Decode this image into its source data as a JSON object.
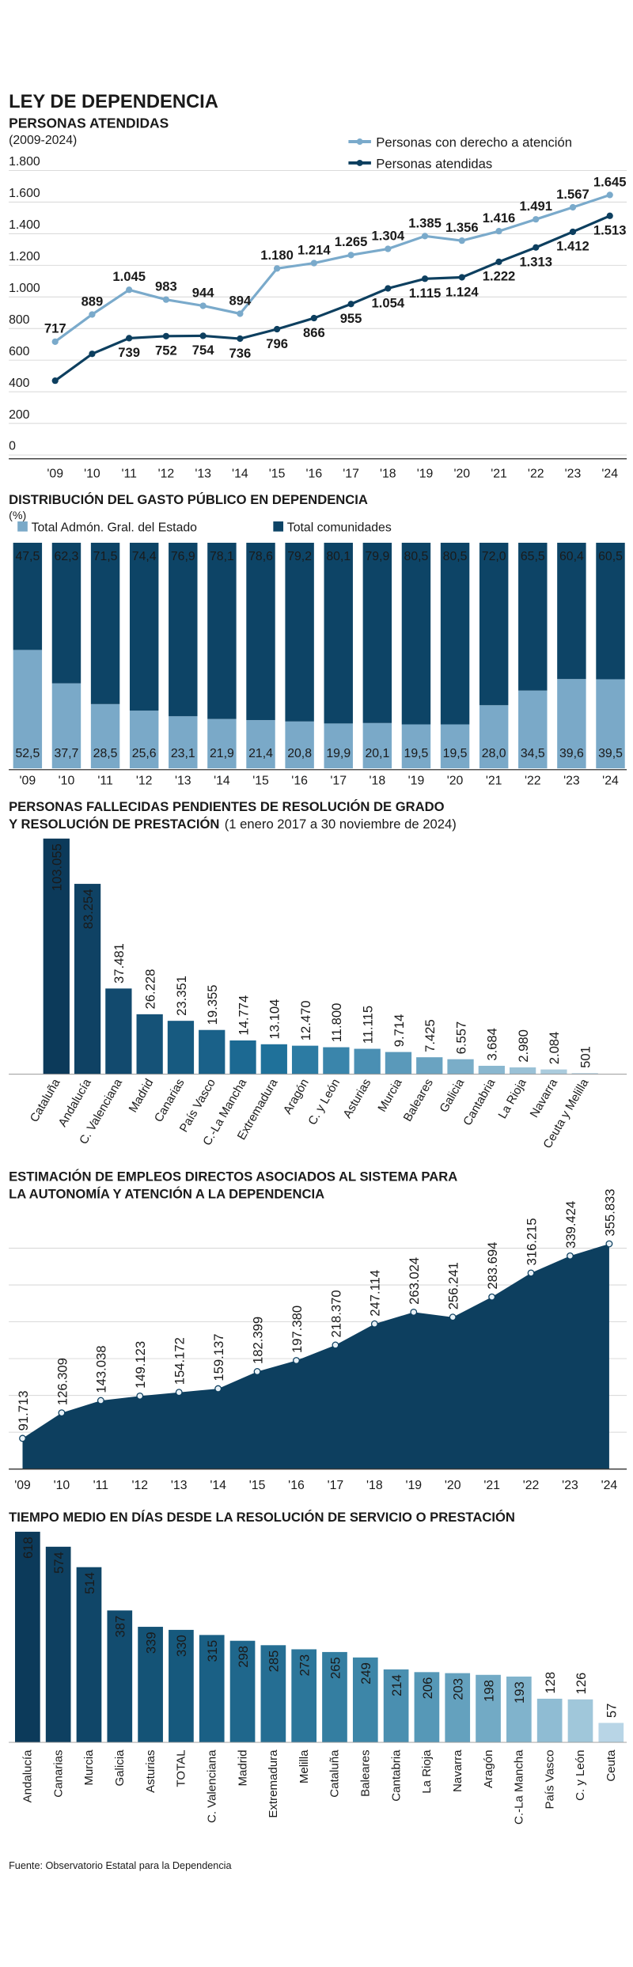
{
  "header": {
    "title": "LEY DE DEPENDENCIA"
  },
  "chart_data": [
    {
      "type": "line",
      "title": "PERSONAS ATENDIDAS",
      "subtitle": "(2009-2024)",
      "categories": [
        "'09",
        "'10",
        "'11",
        "'12",
        "'13",
        "'14",
        "'15",
        "'16",
        "'17",
        "'18",
        "'19",
        "'20",
        "'21",
        "'22",
        "'23",
        "'24"
      ],
      "series": [
        {
          "name": "Personas con derecho a atención",
          "color": "#7aaacb",
          "values": [
            717,
            889,
            1045,
            983,
            944,
            894,
            1180,
            1214,
            1265,
            1304,
            1385,
            1356,
            1416,
            1491,
            1567,
            1645
          ],
          "value_labels": [
            "717",
            "889",
            "1.045",
            "983",
            "944",
            "894",
            "1.180",
            "1.214",
            "1.265",
            "1.304",
            "1.385",
            "1.356",
            "1.416",
            "1.491",
            "1.567",
            "1.645"
          ]
        },
        {
          "name": "Personas atendidas",
          "color": "#0d3f5f",
          "values": [
            470,
            640,
            739,
            752,
            754,
            736,
            796,
            866,
            955,
            1054,
            1115,
            1124,
            1222,
            1313,
            1412,
            1513
          ],
          "value_labels": [
            null,
            null,
            "739",
            "752",
            "754",
            "736",
            "796",
            "866",
            "955",
            "1.054",
            "1.115",
            "1.124",
            "1.222",
            "1.313",
            "1.412",
            "1.513"
          ]
        }
      ],
      "ylim": [
        0,
        1800
      ],
      "yticks": [
        0,
        200,
        400,
        600,
        800,
        {
          "value": 1000,
          "label": "1.000"
        },
        {
          "value": 1200,
          "label": "1.200"
        },
        {
          "value": 1400,
          "label": "1.400"
        },
        {
          "value": 1600,
          "label": "1.600"
        },
        {
          "value": 1800,
          "label": "1.800"
        }
      ],
      "grid": true
    },
    {
      "type": "stacked_bar",
      "title": "DISTRIBUCIÓN DEL GASTO PÚBLICO EN DEPENDENCIA",
      "subtitle": "(%)",
      "categories": [
        "'09",
        "'10",
        "'11",
        "'12",
        "'13",
        "'14",
        "'15",
        "'16",
        "'17",
        "'18",
        "'19",
        "'20",
        "'21",
        "'22",
        "'23",
        "'24"
      ],
      "series": [
        {
          "name": "Total Admón. Gral. del Estado",
          "color": "#7aa9c8",
          "values": [
            52.5,
            37.7,
            28.5,
            25.6,
            23.1,
            21.9,
            21.4,
            20.8,
            19.9,
            20.1,
            19.5,
            19.5,
            28.0,
            34.5,
            39.6,
            39.5
          ],
          "value_labels": [
            "52,5",
            "37,7",
            "28,5",
            "25,6",
            "23,1",
            "21,9",
            "21,4",
            "20,8",
            "19,9",
            "20,1",
            "19,5",
            "19,5",
            "28,0",
            "34,5",
            "39,6",
            "39,5"
          ]
        },
        {
          "name": "Total comunidades",
          "color": "#0d4466",
          "values": [
            47.5,
            62.3,
            71.5,
            74.4,
            76.9,
            78.1,
            78.6,
            79.2,
            80.1,
            79.9,
            80.5,
            80.5,
            72.0,
            65.5,
            60.4,
            60.5
          ],
          "value_labels": [
            "47,5",
            "62,3",
            "71,5",
            "74,4",
            "76,9",
            "78,1",
            "78,6",
            "79,2",
            "80,1",
            "79,9",
            "80,5",
            "80,5",
            "72,0",
            "65,5",
            "60,4",
            "60,5"
          ]
        }
      ]
    },
    {
      "type": "bar",
      "title": [
        "PERSONAS FALLECIDAS PENDIENTES DE RESOLUCIÓN DE GRADO",
        "Y RESOLUCIÓN DE PRESTACIÓN"
      ],
      "subtitle": "(1 enero 2017 a 30 noviembre de 2024)",
      "categories": [
        "Cataluña",
        "Andalucía",
        "C. Valenciana",
        "Madrid",
        "Canarias",
        "País Vasco",
        "C.-La Mancha",
        "Extremadura",
        "Aragón",
        "C. y León",
        "Asturias",
        "Murcia",
        "Baleares",
        "Galicia",
        "Cantabria",
        "La Rioja",
        "Navarra",
        "Ceuta y Melilla"
      ],
      "values": [
        103055,
        83254,
        37481,
        26228,
        23351,
        19355,
        14774,
        13104,
        12470,
        11800,
        11115,
        9714,
        7425,
        6557,
        3684,
        2980,
        2084,
        501
      ],
      "value_labels": [
        "103.055",
        "83.254",
        "37.481",
        "26.228",
        "23.351",
        "19.355",
        "14.774",
        "13.104",
        "12.470",
        "11.800",
        "11.115",
        "9.714",
        "7.425",
        "6.557",
        "3.684",
        "2.980",
        "2.084",
        "501"
      ],
      "colors": [
        "#0c3a5a",
        "#0f4264",
        "#124a6e",
        "#155277",
        "#175a80",
        "#1a6189",
        "#1c6992",
        "#1f719a",
        "#2c7ba3",
        "#3a85ab",
        "#4a8fb3",
        "#5a99ba",
        "#6aa3c1",
        "#7aadc8",
        "#8ab7cf",
        "#9ac1d6",
        "#aacbdd",
        "#bad5e4"
      ]
    },
    {
      "type": "area",
      "title": [
        "ESTIMACIÓN DE EMPLEOS DIRECTOS ASOCIADOS AL SISTEMA PARA",
        "LA AUTONOMÍA Y ATENCIÓN A LA DEPENDENCIA"
      ],
      "categories": [
        "'09",
        "'10",
        "'11",
        "'12",
        "'13",
        "'14",
        "'15",
        "'16",
        "'17",
        "'18",
        "'19",
        "'20",
        "'21",
        "'22",
        "'23",
        "'24"
      ],
      "values": [
        91713,
        126309,
        143038,
        149123,
        154172,
        159137,
        182399,
        197380,
        218370,
        247114,
        263024,
        256241,
        283694,
        316215,
        339424,
        355833
      ],
      "value_labels": [
        "91.713",
        "126.309",
        "143.038",
        "149.123",
        "154.172",
        "159.137",
        "182.399",
        "197.380",
        "218.370",
        "247.114",
        "263.024",
        "256.241",
        "283.694",
        "316.215",
        "339.424",
        "355.833"
      ],
      "color": "#0d3f5f",
      "ylim": [
        50000,
        370000
      ],
      "yticks": [
        100000,
        150000,
        200000,
        250000,
        300000,
        350000
      ],
      "grid": true
    },
    {
      "type": "bar",
      "title": "TIEMPO MEDIO EN DÍAS DESDE LA RESOLUCIÓN DE SERVICIO O PRESTACIÓN",
      "categories": [
        "Andalucía",
        "Canarias",
        "Murcia",
        "Galicia",
        "Asturias",
        "TOTAL",
        "C. Valenciana",
        "Madrid",
        "Extremadura",
        "Melilla",
        "Cataluña",
        "Baleares",
        "Cantabria",
        "La Rioja",
        "Navarra",
        "Aragón",
        "C.-La Mancha",
        "País Vasco",
        "C. y León",
        "Ceuta"
      ],
      "values": [
        618,
        574,
        514,
        387,
        339,
        330,
        315,
        298,
        285,
        273,
        265,
        249,
        214,
        206,
        203,
        198,
        193,
        128,
        126,
        57
      ],
      "colors": [
        "#0c3a5a",
        "#0e4061",
        "#104668",
        "#124c6f",
        "#145376",
        "#16597d",
        "#1a6085",
        "#1f678c",
        "#256e93",
        "#2c769a",
        "#347ea1",
        "#3d86a8",
        "#4a8fb0",
        "#5698b7",
        "#64a1be",
        "#72aac5",
        "#80b3cc",
        "#8fbcd3",
        "#a0c7da",
        "#b8d5e6"
      ]
    }
  ],
  "source": "Fuente: Observatorio Estatal para la Dependencia"
}
